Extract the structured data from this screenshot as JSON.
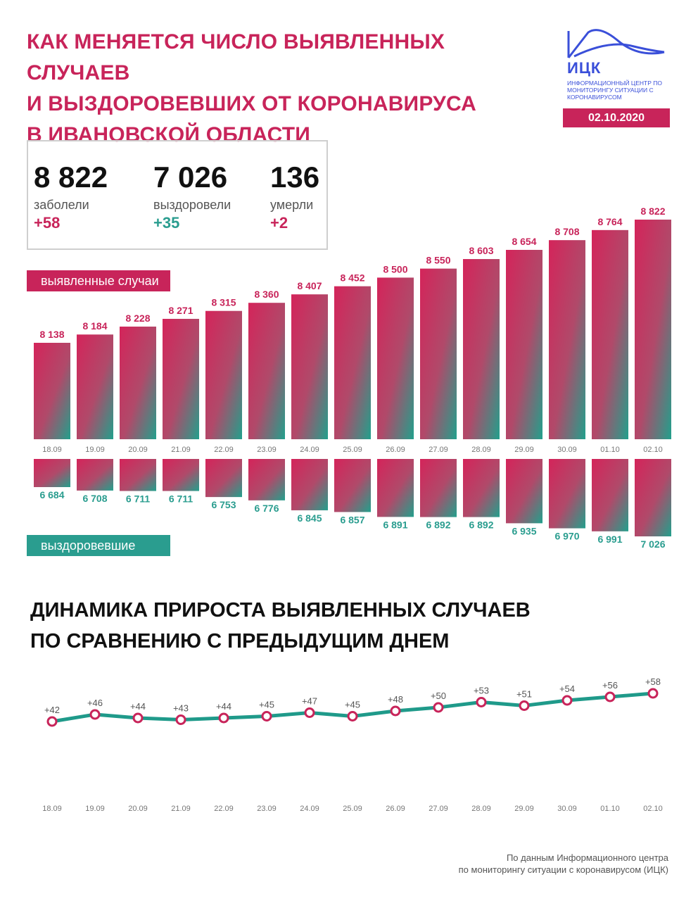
{
  "title_lines": [
    "КАК МЕНЯЕТСЯ ЧИСЛО ВЫЯВЛЕННЫХ СЛУЧАЕВ",
    "И ВЫЗДОРОВЕВШИХ ОТ КОРОНАВИРУСА",
    "В ИВАНОВСКОЙ ОБЛАСТИ"
  ],
  "logo": {
    "name": "ИЦК",
    "subtitle": "Информационный центр по мониторингу ситуации с коронавирусом",
    "icon": "mountain-wave-logo-icon"
  },
  "date": "02.10.2020",
  "stats": [
    {
      "value": "8 822",
      "label": "заболели",
      "delta": "+58",
      "delta_color": "#c8245a"
    },
    {
      "value": "7 026",
      "label": "выздоровели",
      "delta": "+35",
      "delta_color": "#2a9d8f"
    },
    {
      "value": "136",
      "label": "умерли",
      "delta": "+2",
      "delta_color": "#c8245a"
    }
  ],
  "colors": {
    "accent": "#c8245a",
    "teal": "#2a9d8f",
    "line": "#1f9a8a"
  },
  "chart_data": [
    {
      "type": "bar",
      "label": "выявленные случаи",
      "categories": [
        "18.09",
        "19.09",
        "20.09",
        "21.09",
        "22.09",
        "23.09",
        "24.09",
        "25.09",
        "26.09",
        "27.09",
        "28.09",
        "29.09",
        "30.09",
        "01.10",
        "02.10"
      ],
      "values": [
        8138,
        8184,
        8228,
        8271,
        8315,
        8360,
        8407,
        8452,
        8500,
        8550,
        8603,
        8654,
        8708,
        8764,
        8822
      ],
      "value_labels": [
        "8 138",
        "8 184",
        "8 228",
        "8 271",
        "8 315",
        "8 360",
        "8 407",
        "8 452",
        "8 500",
        "8 550",
        "8 603",
        "8 654",
        "8 708",
        "8 764",
        "8 822"
      ],
      "ylim": [
        7700,
        8822
      ]
    },
    {
      "type": "bar",
      "label": "выздоровевшие",
      "categories": [
        "18.09",
        "19.09",
        "20.09",
        "21.09",
        "22.09",
        "23.09",
        "24.09",
        "25.09",
        "26.09",
        "27.09",
        "28.09",
        "29.09",
        "30.09",
        "01.10",
        "02.10"
      ],
      "values": [
        6684,
        6708,
        6711,
        6711,
        6753,
        6776,
        6845,
        6857,
        6891,
        6892,
        6892,
        6935,
        6970,
        6991,
        7026
      ],
      "value_labels": [
        "6 684",
        "6 708",
        "6 711",
        "6 711",
        "6 753",
        "6 776",
        "6 845",
        "6 857",
        "6 891",
        "6 892",
        "6 892",
        "6 935",
        "6 970",
        "6 991",
        "7 026"
      ],
      "ylim": [
        6600,
        7026
      ],
      "direction": "down"
    },
    {
      "type": "line",
      "title_lines": [
        "ДИНАМИКА ПРИРОСТА ВЫЯВЛЕННЫХ СЛУЧАЕВ",
        "ПО СРАВНЕНИЮ С ПРЕДЫДУЩИМ ДНЕМ"
      ],
      "categories": [
        "18.09",
        "19.09",
        "20.09",
        "21.09",
        "22.09",
        "23.09",
        "24.09",
        "25.09",
        "26.09",
        "27.09",
        "28.09",
        "29.09",
        "30.09",
        "01.10",
        "02.10"
      ],
      "values": [
        42,
        46,
        44,
        43,
        44,
        45,
        47,
        45,
        48,
        50,
        53,
        51,
        54,
        56,
        58
      ],
      "value_labels": [
        "+42",
        "+46",
        "+44",
        "+43",
        "+44",
        "+45",
        "+47",
        "+45",
        "+48",
        "+50",
        "+53",
        "+51",
        "+54",
        "+56",
        "+58"
      ],
      "ylim": [
        0,
        58
      ]
    }
  ],
  "footer_lines": [
    "По данным Информационного центра",
    "по мониторингу ситуации с коронавирусом (ИЦК)"
  ]
}
